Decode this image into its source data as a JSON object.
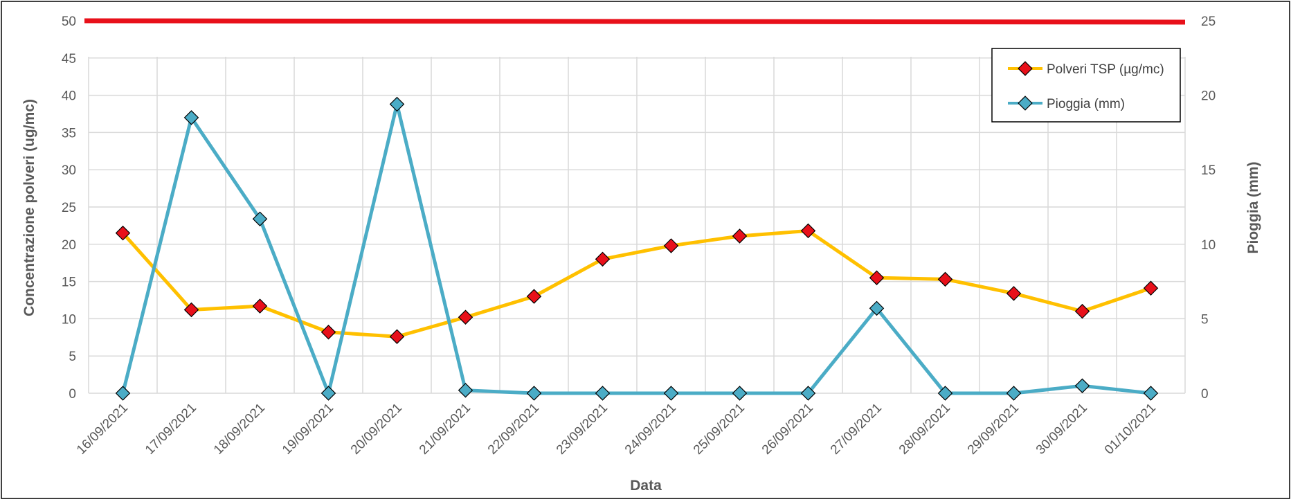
{
  "chart_data": {
    "type": "line",
    "title": "",
    "xlabel": "Data",
    "ylabel_left": "Concentrazione polveri (ug/mc)",
    "ylabel_right": "Pioggia (mm)",
    "ylim_left": [
      0,
      50
    ],
    "ylim_right": [
      0,
      25
    ],
    "yticks_left": [
      0,
      5,
      10,
      15,
      20,
      25,
      30,
      35,
      40,
      45,
      50
    ],
    "yticks_right": [
      0,
      5,
      10,
      15,
      20,
      25
    ],
    "grid": true,
    "legend_position": "top-right",
    "categories": [
      "16/09/2021",
      "17/09/2021",
      "18/09/2021",
      "19/09/2021",
      "20/09/2021",
      "21/09/2021",
      "22/09/2021",
      "23/09/2021",
      "24/09/2021",
      "25/09/2021",
      "26/09/2021",
      "27/09/2021",
      "28/09/2021",
      "29/09/2021",
      "30/09/2021",
      "01/10/2021"
    ],
    "series": [
      {
        "name": "Polveri TSP (µg/mc)",
        "axis": "left",
        "line_color": "#FFC000",
        "marker_color": "#E8101A",
        "values": [
          21.5,
          11.2,
          11.7,
          8.2,
          7.6,
          10.2,
          13.0,
          18.0,
          19.8,
          21.1,
          21.8,
          15.5,
          15.3,
          13.4,
          11.0,
          14.1
        ]
      },
      {
        "name": "Pioggia (mm)",
        "axis": "right",
        "line_color": "#4BACC6",
        "marker_color": "#4BACC6",
        "values": [
          0,
          18.5,
          11.7,
          0,
          19.4,
          0.2,
          0,
          0,
          0,
          0,
          0,
          5.7,
          0,
          0,
          0.5,
          0
        ]
      }
    ],
    "reference_line": {
      "axis": "left",
      "value": 50,
      "color": "#E8101A"
    }
  }
}
